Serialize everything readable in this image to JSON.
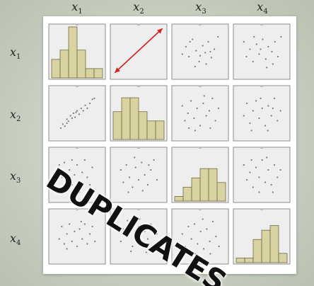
{
  "chart_data": {
    "type": "scatter",
    "variables": [
      {
        "symbol": "x",
        "index": "1"
      },
      {
        "symbol": "x",
        "index": "2"
      },
      {
        "symbol": "x",
        "index": "3"
      },
      {
        "symbol": "x",
        "index": "4"
      }
    ],
    "diagonal_type": "histogram",
    "histograms": [
      [
        4,
        6,
        11,
        6,
        2,
        2
      ],
      [
        6,
        9,
        9,
        6,
        4,
        4
      ],
      [
        1,
        3,
        5,
        7,
        7,
        4
      ],
      [
        1,
        1,
        5,
        7,
        8,
        2
      ]
    ],
    "scatter_points": [
      {
        "row": 1,
        "col": 0,
        "points": [
          [
            0.18,
            0.8
          ],
          [
            0.22,
            0.72
          ],
          [
            0.26,
            0.76
          ],
          [
            0.3,
            0.62
          ],
          [
            0.33,
            0.66
          ],
          [
            0.37,
            0.55
          ],
          [
            0.4,
            0.6
          ],
          [
            0.43,
            0.5
          ],
          [
            0.46,
            0.58
          ],
          [
            0.5,
            0.45
          ],
          [
            0.54,
            0.52
          ],
          [
            0.58,
            0.4
          ],
          [
            0.62,
            0.45
          ],
          [
            0.66,
            0.34
          ],
          [
            0.7,
            0.4
          ],
          [
            0.75,
            0.3
          ],
          [
            0.8,
            0.22
          ],
          [
            0.84,
            0.2
          ],
          [
            0.3,
            0.7
          ],
          [
            0.48,
            0.48
          ]
        ]
      },
      {
        "row": 2,
        "col": 0,
        "points": [
          [
            0.15,
            0.3
          ],
          [
            0.2,
            0.55
          ],
          [
            0.25,
            0.25
          ],
          [
            0.3,
            0.6
          ],
          [
            0.35,
            0.4
          ],
          [
            0.4,
            0.7
          ],
          [
            0.45,
            0.5
          ],
          [
            0.5,
            0.3
          ],
          [
            0.55,
            0.65
          ],
          [
            0.6,
            0.45
          ],
          [
            0.65,
            0.2
          ],
          [
            0.7,
            0.55
          ],
          [
            0.75,
            0.7
          ],
          [
            0.8,
            0.35
          ],
          [
            0.25,
            0.8
          ],
          [
            0.55,
            0.85
          ],
          [
            0.4,
            0.2
          ]
        ]
      },
      {
        "row": 3,
        "col": 0,
        "points": [
          [
            0.15,
            0.55
          ],
          [
            0.2,
            0.3
          ],
          [
            0.25,
            0.65
          ],
          [
            0.3,
            0.45
          ],
          [
            0.35,
            0.25
          ],
          [
            0.4,
            0.6
          ],
          [
            0.45,
            0.4
          ],
          [
            0.5,
            0.7
          ],
          [
            0.55,
            0.35
          ],
          [
            0.6,
            0.55
          ],
          [
            0.65,
            0.25
          ],
          [
            0.7,
            0.65
          ],
          [
            0.75,
            0.45
          ],
          [
            0.8,
            0.3
          ],
          [
            0.85,
            0.6
          ],
          [
            0.3,
            0.75
          ],
          [
            0.58,
            0.2
          ]
        ]
      },
      {
        "row": 0,
        "col": 2,
        "points": [
          [
            0.15,
            0.55
          ],
          [
            0.22,
            0.4
          ],
          [
            0.28,
            0.6
          ],
          [
            0.35,
            0.25
          ],
          [
            0.42,
            0.48
          ],
          [
            0.48,
            0.7
          ],
          [
            0.55,
            0.38
          ],
          [
            0.6,
            0.52
          ],
          [
            0.66,
            0.3
          ],
          [
            0.72,
            0.62
          ],
          [
            0.78,
            0.45
          ],
          [
            0.85,
            0.2
          ],
          [
            0.4,
            0.8
          ],
          [
            0.62,
            0.75
          ],
          [
            0.3,
            0.3
          ],
          [
            0.5,
            0.58
          ],
          [
            0.7,
            0.5
          ]
        ]
      },
      {
        "row": 0,
        "col": 3,
        "points": [
          [
            0.15,
            0.3
          ],
          [
            0.2,
            0.6
          ],
          [
            0.27,
            0.45
          ],
          [
            0.33,
            0.7
          ],
          [
            0.4,
            0.35
          ],
          [
            0.45,
            0.55
          ],
          [
            0.52,
            0.25
          ],
          [
            0.58,
            0.65
          ],
          [
            0.63,
            0.4
          ],
          [
            0.7,
            0.5
          ],
          [
            0.76,
            0.3
          ],
          [
            0.82,
            0.6
          ],
          [
            0.88,
            0.2
          ],
          [
            0.35,
            0.2
          ],
          [
            0.6,
            0.82
          ],
          [
            0.48,
            0.45
          ],
          [
            0.72,
            0.75
          ]
        ]
      },
      {
        "row": 1,
        "col": 2,
        "points": [
          [
            0.15,
            0.35
          ],
          [
            0.2,
            0.65
          ],
          [
            0.26,
            0.5
          ],
          [
            0.32,
            0.25
          ],
          [
            0.38,
            0.6
          ],
          [
            0.44,
            0.4
          ],
          [
            0.5,
            0.75
          ],
          [
            0.56,
            0.3
          ],
          [
            0.62,
            0.55
          ],
          [
            0.68,
            0.45
          ],
          [
            0.74,
            0.2
          ],
          [
            0.8,
            0.65
          ],
          [
            0.86,
            0.4
          ],
          [
            0.4,
            0.85
          ],
          [
            0.58,
            0.15
          ],
          [
            0.7,
            0.8
          ],
          [
            0.28,
            0.8
          ]
        ]
      },
      {
        "row": 1,
        "col": 3,
        "points": [
          [
            0.15,
            0.55
          ],
          [
            0.21,
            0.3
          ],
          [
            0.27,
            0.7
          ],
          [
            0.33,
            0.45
          ],
          [
            0.39,
            0.25
          ],
          [
            0.45,
            0.6
          ],
          [
            0.51,
            0.4
          ],
          [
            0.57,
            0.75
          ],
          [
            0.63,
            0.35
          ],
          [
            0.69,
            0.55
          ],
          [
            0.75,
            0.2
          ],
          [
            0.81,
            0.65
          ],
          [
            0.87,
            0.45
          ],
          [
            0.48,
            0.2
          ],
          [
            0.62,
            0.85
          ],
          [
            0.3,
            0.85
          ],
          [
            0.72,
            0.4
          ]
        ]
      },
      {
        "row": 2,
        "col": 1,
        "points": [
          [
            0.15,
            0.4
          ],
          [
            0.2,
            0.65
          ],
          [
            0.26,
            0.3
          ],
          [
            0.32,
            0.55
          ],
          [
            0.38,
            0.75
          ],
          [
            0.44,
            0.35
          ],
          [
            0.5,
            0.6
          ],
          [
            0.56,
            0.25
          ],
          [
            0.62,
            0.5
          ],
          [
            0.68,
            0.7
          ],
          [
            0.74,
            0.4
          ],
          [
            0.8,
            0.2
          ],
          [
            0.86,
            0.6
          ],
          [
            0.42,
            0.15
          ],
          [
            0.58,
            0.82
          ],
          [
            0.3,
            0.85
          ],
          [
            0.7,
            0.3
          ]
        ]
      },
      {
        "row": 3,
        "col": 1,
        "points": [
          [
            0.15,
            0.6
          ],
          [
            0.2,
            0.35
          ],
          [
            0.26,
            0.5
          ],
          [
            0.32,
            0.25
          ],
          [
            0.38,
            0.7
          ],
          [
            0.44,
            0.45
          ],
          [
            0.5,
            0.3
          ],
          [
            0.56,
            0.65
          ],
          [
            0.62,
            0.4
          ],
          [
            0.68,
            0.55
          ],
          [
            0.74,
            0.25
          ],
          [
            0.8,
            0.7
          ],
          [
            0.86,
            0.45
          ],
          [
            0.35,
            0.8
          ],
          [
            0.52,
            0.15
          ],
          [
            0.65,
            0.82
          ],
          [
            0.28,
            0.18
          ]
        ]
      },
      {
        "row": 2,
        "col": 3,
        "points": [
          [
            0.15,
            0.3
          ],
          [
            0.21,
            0.6
          ],
          [
            0.27,
            0.45
          ],
          [
            0.33,
            0.75
          ],
          [
            0.39,
            0.35
          ],
          [
            0.45,
            0.55
          ],
          [
            0.51,
            0.2
          ],
          [
            0.57,
            0.65
          ],
          [
            0.63,
            0.4
          ],
          [
            0.69,
            0.7
          ],
          [
            0.75,
            0.3
          ],
          [
            0.81,
            0.55
          ],
          [
            0.87,
            0.4
          ],
          [
            0.45,
            0.85
          ],
          [
            0.6,
            0.15
          ],
          [
            0.3,
            0.2
          ],
          [
            0.72,
            0.85
          ]
        ]
      },
      {
        "row": 3,
        "col": 2,
        "points": [
          [
            0.15,
            0.45
          ],
          [
            0.21,
            0.7
          ],
          [
            0.27,
            0.3
          ],
          [
            0.33,
            0.55
          ],
          [
            0.39,
            0.25
          ],
          [
            0.45,
            0.65
          ],
          [
            0.51,
            0.4
          ],
          [
            0.57,
            0.75
          ],
          [
            0.63,
            0.35
          ],
          [
            0.69,
            0.6
          ],
          [
            0.75,
            0.2
          ],
          [
            0.81,
            0.5
          ],
          [
            0.87,
            0.7
          ],
          [
            0.4,
            0.85
          ],
          [
            0.55,
            0.15
          ],
          [
            0.3,
            0.8
          ],
          [
            0.7,
            0.85
          ]
        ]
      }
    ],
    "annotation": {
      "type": "double-arrow",
      "panel_row": 0,
      "panel_col": 1,
      "from": [
        0.08,
        0.88
      ],
      "to": [
        0.92,
        0.08
      ],
      "color": "#d42020"
    },
    "title": "",
    "xlabel": "",
    "ylabel": ""
  },
  "watermark": "DUPLICATES",
  "colors": {
    "histogram_fill": "#d8d3a0",
    "histogram_stroke": "#6f6b45",
    "panel_fill": "#eeeeee",
    "panel_stroke": "#8d8d8d",
    "point": "#7a7a7a"
  }
}
